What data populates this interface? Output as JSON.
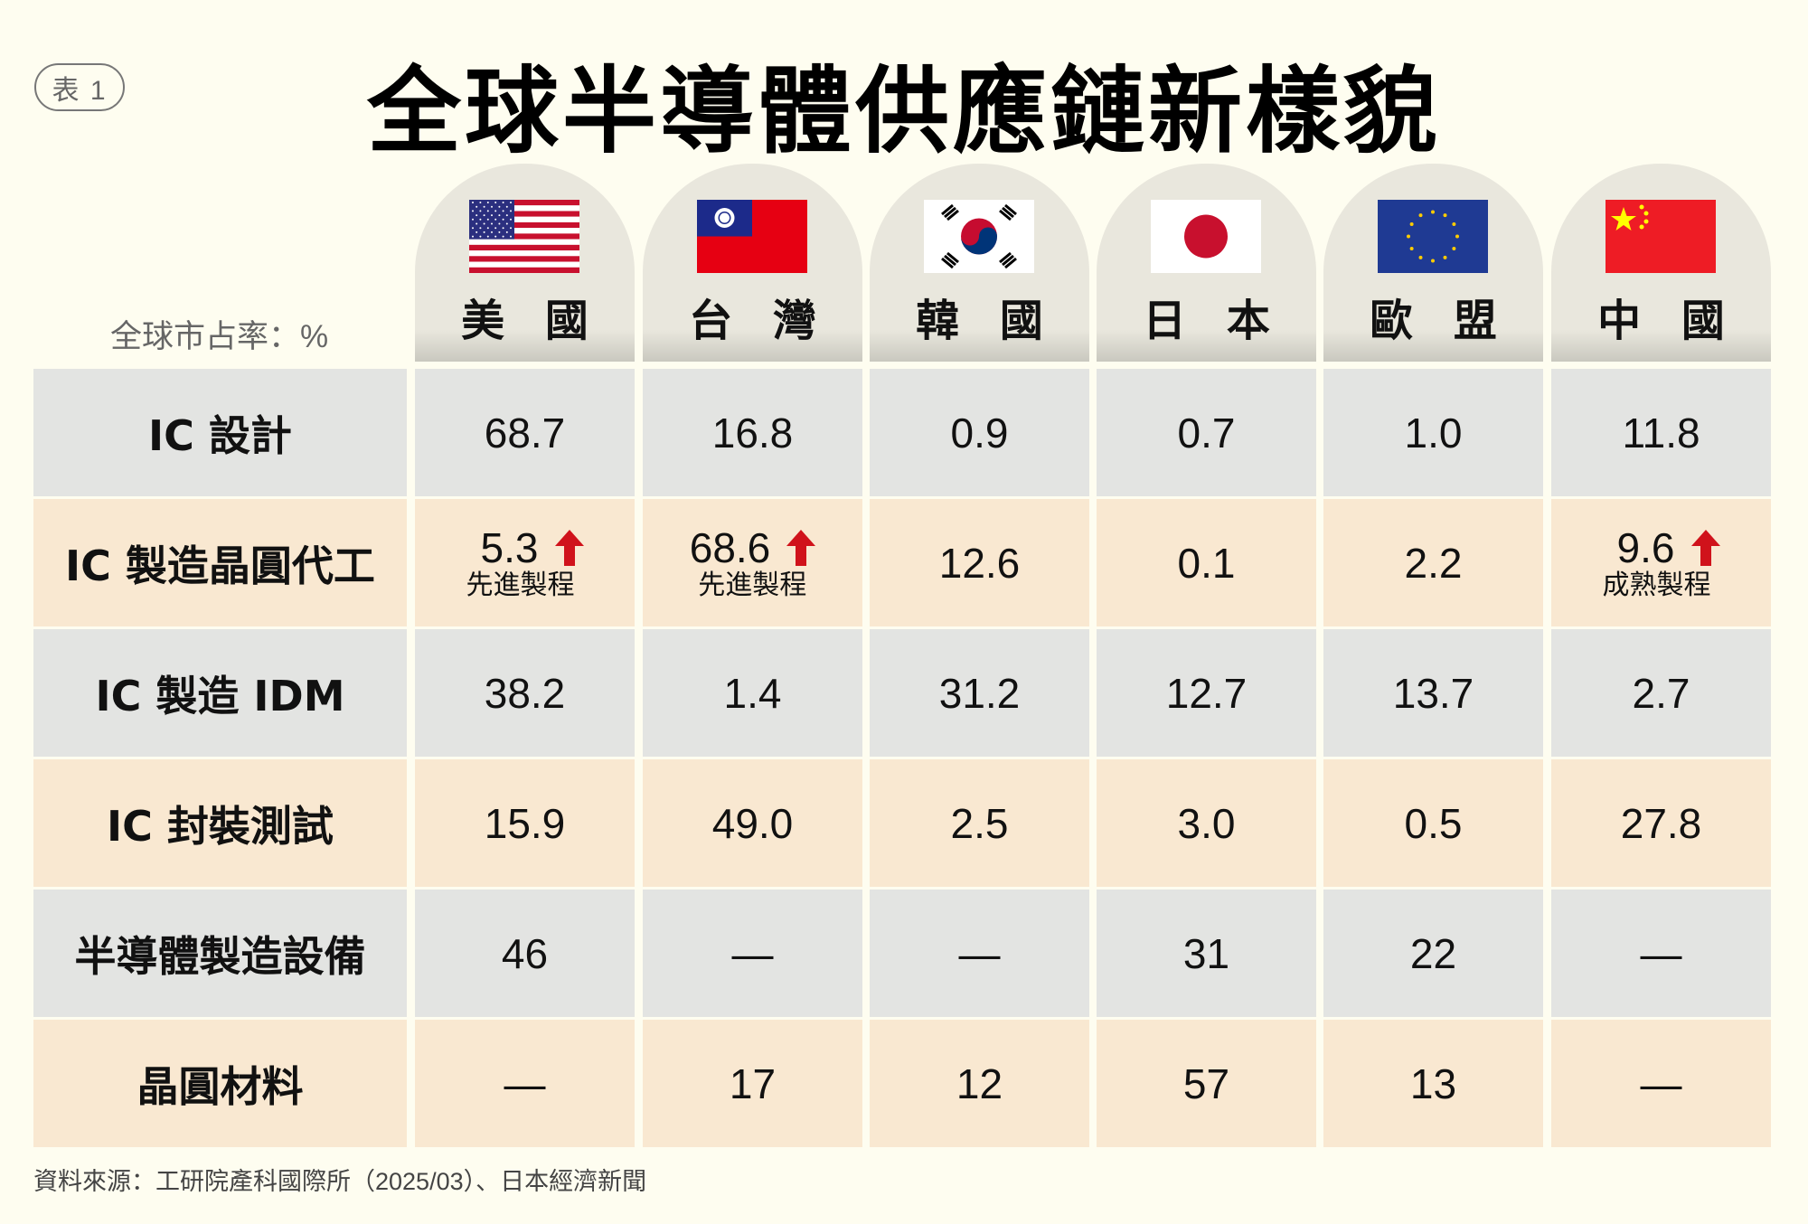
{
  "badge": "表 1",
  "title": "全球半導體供應鏈新樣貌",
  "unit_label": "全球市占率：%",
  "countries": [
    "美 國",
    "台 灣",
    "韓 國",
    "日 本",
    "歐 盟",
    "中 國"
  ],
  "flags": [
    "us-flag",
    "taiwan-flag",
    "korea-flag",
    "japan-flag",
    "eu-flag",
    "china-flag"
  ],
  "rows": [
    {
      "label": "IC 設計",
      "values": [
        "68.7",
        "16.8",
        "0.9",
        "0.7",
        "1.0",
        "11.8"
      ]
    },
    {
      "label": "IC 製造晶圓代工",
      "values": [
        "5.3",
        "68.6",
        "12.6",
        "0.1",
        "2.2",
        "9.6"
      ],
      "notes": [
        "先進製程",
        "先進製程",
        "",
        "",
        "",
        "成熟製程"
      ],
      "up": [
        true,
        true,
        false,
        false,
        false,
        true
      ]
    },
    {
      "label": "IC 製造 IDM",
      "values": [
        "38.2",
        "1.4",
        "31.2",
        "12.7",
        "13.7",
        "2.7"
      ]
    },
    {
      "label": "IC 封裝測試",
      "values": [
        "15.9",
        "49.0",
        "2.5",
        "3.0",
        "0.5",
        "27.8"
      ]
    },
    {
      "label": "半導體製造設備",
      "values": [
        "46",
        "—",
        "—",
        "31",
        "22",
        "—"
      ]
    },
    {
      "label": "晶圓材料",
      "values": [
        "—",
        "17",
        "12",
        "57",
        "13",
        "—"
      ]
    }
  ],
  "source": "資料來源：工研院產科國際所（2025/03）、日本經濟新聞",
  "colors": {
    "background": "#fefdf0",
    "row_gray": "#e3e4e2",
    "row_beige": "#f9e8d1",
    "arrow": "#d0121b"
  }
}
